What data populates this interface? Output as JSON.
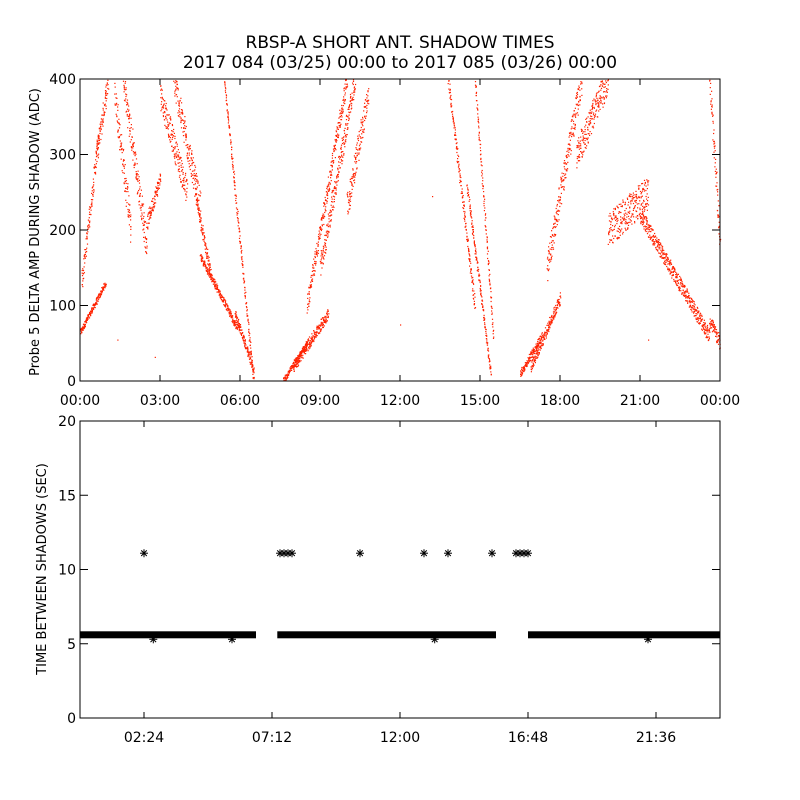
{
  "title_line1": "RBSP-A SHORT ANT. SHADOW TIMES",
  "title_line2": "2017 084 (03/25) 00:00 to 2017 085 (03/26) 00:00",
  "chart_data": [
    {
      "type": "scatter",
      "ylabel": "Probe 5 DELTA AMP DURING SHADOW (ADC)",
      "xlabel": "",
      "xlim": [
        "00:00",
        "24:00"
      ],
      "ylim": [
        0,
        400
      ],
      "x_ticks": [
        "00:00",
        "03:00",
        "06:00",
        "09:00",
        "12:00",
        "15:00",
        "18:00",
        "21:00",
        "00:00"
      ],
      "y_ticks": [
        0,
        100,
        200,
        300,
        400
      ],
      "marker_color": "#ff2200",
      "series": [
        {
          "segments": [
            {
              "x0": 0.0,
              "x1": 0.95,
              "y0": 65,
              "y1": 130,
              "spread": 8
            },
            {
              "x0": 0.05,
              "x1": 0.7,
              "y0": 130,
              "y1": 330,
              "spread": 25
            },
            {
              "x0": 0.6,
              "x1": 1.05,
              "y0": 300,
              "y1": 400,
              "spread": 30
            },
            {
              "x0": 1.3,
              "x1": 1.9,
              "y0": 380,
              "y1": 200,
              "spread": 40
            },
            {
              "x0": 1.6,
              "x1": 2.5,
              "y0": 400,
              "y1": 180,
              "spread": 40
            },
            {
              "x0": 2.5,
              "x1": 3.0,
              "y0": 210,
              "y1": 270,
              "spread": 20
            },
            {
              "x0": 3.0,
              "x1": 4.0,
              "y0": 380,
              "y1": 250,
              "spread": 35
            },
            {
              "x0": 3.5,
              "x1": 4.5,
              "y0": 400,
              "y1": 230,
              "spread": 40
            },
            {
              "x0": 4.3,
              "x1": 4.9,
              "y0": 250,
              "y1": 140,
              "spread": 15
            },
            {
              "x0": 4.5,
              "x1": 5.9,
              "y0": 165,
              "y1": 70,
              "spread": 10
            },
            {
              "x0": 5.4,
              "x1": 6.5,
              "y0": 400,
              "y1": 0,
              "spread": 8
            },
            {
              "x0": 5.8,
              "x1": 6.5,
              "y0": 90,
              "y1": 15,
              "spread": 10
            },
            {
              "x0": 7.6,
              "x1": 8.5,
              "y0": 0,
              "y1": 50,
              "spread": 8
            },
            {
              "x0": 8.0,
              "x1": 9.3,
              "y0": 20,
              "y1": 90,
              "spread": 15
            },
            {
              "x0": 8.5,
              "x1": 10.0,
              "y0": 100,
              "y1": 400,
              "spread": 25
            },
            {
              "x0": 9.0,
              "x1": 10.3,
              "y0": 150,
              "y1": 400,
              "spread": 30
            },
            {
              "x0": 10.0,
              "x1": 10.8,
              "y0": 230,
              "y1": 380,
              "spread": 35
            },
            {
              "x0": 13.8,
              "x1": 14.8,
              "y0": 400,
              "y1": 100,
              "spread": 15
            },
            {
              "x0": 14.5,
              "x1": 15.4,
              "y0": 260,
              "y1": 10,
              "spread": 10
            },
            {
              "x0": 14.8,
              "x1": 15.5,
              "y0": 400,
              "y1": 60,
              "spread": 8
            },
            {
              "x0": 16.5,
              "x1": 17.3,
              "y0": 10,
              "y1": 60,
              "spread": 10
            },
            {
              "x0": 16.9,
              "x1": 18.0,
              "y0": 20,
              "y1": 110,
              "spread": 15
            },
            {
              "x0": 17.5,
              "x1": 18.8,
              "y0": 150,
              "y1": 400,
              "spread": 40
            },
            {
              "x0": 18.6,
              "x1": 19.8,
              "y0": 300,
              "y1": 400,
              "spread": 40
            },
            {
              "x0": 19.8,
              "x1": 21.3,
              "y0": 200,
              "y1": 250,
              "spread": 45
            },
            {
              "x0": 21.0,
              "x1": 23.6,
              "y0": 220,
              "y1": 60,
              "spread": 20
            },
            {
              "x0": 23.6,
              "x1": 24.0,
              "y0": 80,
              "y1": 50,
              "spread": 20
            },
            {
              "x0": 23.6,
              "x1": 24.0,
              "y0": 400,
              "y1": 180,
              "spread": 40
            }
          ],
          "isolated_points": [
            {
              "x": 1.4,
              "y": 55
            },
            {
              "x": 2.8,
              "y": 32
            },
            {
              "x": 12.0,
              "y": 75
            },
            {
              "x": 13.2,
              "y": 245
            },
            {
              "x": 10.1,
              "y": 248
            },
            {
              "x": 21.3,
              "y": 55
            }
          ]
        }
      ]
    },
    {
      "type": "scatter",
      "ylabel": "TIME BETWEEN SHADOWS (SEC)",
      "xlabel": "",
      "xlim": [
        "00:00",
        "24:00"
      ],
      "ylim": [
        0,
        20
      ],
      "x_ticks": [
        "02:24",
        "07:12",
        "12:00",
        "16:48",
        "21:36"
      ],
      "y_ticks": [
        0,
        5,
        10,
        15,
        20
      ],
      "marker": "asterisk",
      "marker_color": "#000000",
      "series": [
        {
          "baseline_y": 5.6,
          "baseline_ranges": [
            [
              0.0,
              6.6
            ],
            [
              7.4,
              15.6
            ],
            [
              16.8,
              24.0
            ]
          ],
          "points": [
            {
              "x": 2.4,
              "y": 11.1
            },
            {
              "x": 7.5,
              "y": 11.1
            },
            {
              "x": 7.65,
              "y": 11.1
            },
            {
              "x": 7.8,
              "y": 11.1
            },
            {
              "x": 7.95,
              "y": 11.1
            },
            {
              "x": 10.5,
              "y": 11.1
            },
            {
              "x": 12.9,
              "y": 11.1
            },
            {
              "x": 13.8,
              "y": 11.1
            },
            {
              "x": 15.45,
              "y": 11.1
            },
            {
              "x": 16.35,
              "y": 11.1
            },
            {
              "x": 16.5,
              "y": 11.1
            },
            {
              "x": 16.65,
              "y": 11.1
            },
            {
              "x": 16.8,
              "y": 11.1
            },
            {
              "x": 2.75,
              "y": 5.3
            },
            {
              "x": 5.7,
              "y": 5.3
            },
            {
              "x": 13.3,
              "y": 5.3
            },
            {
              "x": 21.3,
              "y": 5.3
            }
          ]
        }
      ]
    }
  ]
}
